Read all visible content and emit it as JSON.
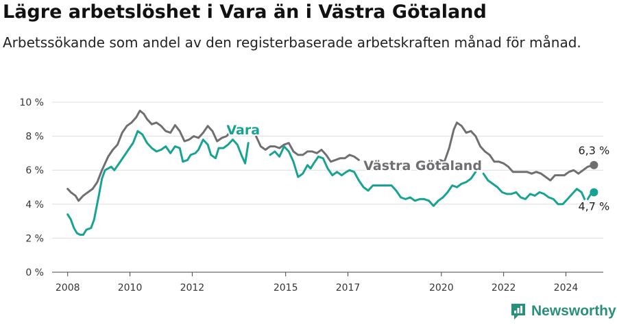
{
  "title": "Lägre arbetslöshet i Vara än i Västra Götaland",
  "subtitle": "Arbetssökande som andel av den registerbaserade arbetskraften månad för månad.",
  "brand": {
    "name": "Newsworthy",
    "color": "#2a8f7a"
  },
  "chart_data": {
    "type": "line",
    "title": "Lägre arbetslöshet i Vara än i Västra Götaland",
    "subtitle": "Arbetssökande som andel av den registerbaserade arbetskraften månad för månad.",
    "xlabel": "",
    "ylabel": "",
    "xlim": [
      2007.5,
      2025.2
    ],
    "ylim": [
      0,
      10
    ],
    "x_ticks": [
      2008,
      2010,
      2012,
      2015,
      2017,
      2020,
      2022,
      2024
    ],
    "x_tick_labels": [
      "2008",
      "2010",
      "2012",
      "2015",
      "2017",
      "2020",
      "2022",
      "2024"
    ],
    "y_ticks": [
      0,
      2,
      4,
      6,
      8,
      10
    ],
    "y_tick_labels": [
      "0 %",
      "2 %",
      "4 %",
      "6 %",
      "8 %",
      "10 %"
    ],
    "grid": true,
    "legend": "inline labels",
    "series": [
      {
        "name": "Västra Götaland",
        "color": "#6e6e73",
        "end_label": "6,3 %",
        "points": [
          [
            2008.0,
            4.9
          ],
          [
            2008.1,
            4.7
          ],
          [
            2008.25,
            4.5
          ],
          [
            2008.35,
            4.2
          ],
          [
            2008.5,
            4.5
          ],
          [
            2008.65,
            4.7
          ],
          [
            2008.8,
            4.9
          ],
          [
            2008.95,
            5.3
          ],
          [
            2009.1,
            6.0
          ],
          [
            2009.3,
            6.8
          ],
          [
            2009.45,
            7.2
          ],
          [
            2009.6,
            7.5
          ],
          [
            2009.75,
            8.2
          ],
          [
            2009.9,
            8.6
          ],
          [
            2010.05,
            8.8
          ],
          [
            2010.2,
            9.1
          ],
          [
            2010.32,
            9.5
          ],
          [
            2010.45,
            9.3
          ],
          [
            2010.55,
            9.0
          ],
          [
            2010.7,
            8.7
          ],
          [
            2010.85,
            8.8
          ],
          [
            2011.0,
            8.6
          ],
          [
            2011.15,
            8.3
          ],
          [
            2011.3,
            8.2
          ],
          [
            2011.45,
            8.65
          ],
          [
            2011.6,
            8.3
          ],
          [
            2011.75,
            7.7
          ],
          [
            2011.9,
            7.8
          ],
          [
            2012.05,
            8.0
          ],
          [
            2012.2,
            7.9
          ],
          [
            2012.35,
            8.2
          ],
          [
            2012.5,
            8.6
          ],
          [
            2012.65,
            8.3
          ],
          [
            2012.8,
            7.7
          ],
          [
            2012.95,
            7.9
          ],
          [
            2013.1,
            8.0
          ],
          [
            2013.25,
            8.3
          ],
          [
            2013.4,
            8.5
          ],
          null,
          [
            2014.05,
            8.0
          ],
          [
            2014.2,
            7.4
          ],
          [
            2014.35,
            7.2
          ],
          [
            2014.5,
            7.4
          ],
          [
            2014.65,
            7.4
          ],
          [
            2014.8,
            7.3
          ],
          [
            2014.95,
            7.5
          ],
          [
            2015.1,
            7.6
          ],
          [
            2015.25,
            7.1
          ],
          [
            2015.4,
            6.9
          ],
          [
            2015.55,
            6.9
          ],
          [
            2015.7,
            7.1
          ],
          [
            2015.85,
            7.1
          ],
          [
            2016.0,
            7.0
          ],
          [
            2016.15,
            7.2
          ],
          [
            2016.3,
            6.9
          ],
          [
            2016.45,
            6.5
          ],
          [
            2016.6,
            6.6
          ],
          [
            2016.75,
            6.7
          ],
          [
            2016.9,
            6.7
          ],
          [
            2017.05,
            6.9
          ],
          [
            2017.2,
            6.8
          ],
          [
            2017.35,
            6.6
          ],
          null,
          [
            2019.85,
            6.5
          ],
          [
            2019.95,
            6.6
          ],
          [
            2020.1,
            6.5
          ],
          [
            2020.25,
            7.3
          ],
          [
            2020.4,
            8.4
          ],
          [
            2020.5,
            8.8
          ],
          [
            2020.65,
            8.6
          ],
          [
            2020.8,
            8.2
          ],
          [
            2020.95,
            8.3
          ],
          [
            2021.1,
            8.0
          ],
          [
            2021.25,
            7.4
          ],
          [
            2021.4,
            7.1
          ],
          [
            2021.55,
            6.9
          ],
          [
            2021.7,
            6.5
          ],
          [
            2021.85,
            6.5
          ],
          [
            2022.0,
            6.4
          ],
          [
            2022.15,
            6.2
          ],
          [
            2022.3,
            5.9
          ],
          [
            2022.45,
            5.9
          ],
          [
            2022.6,
            5.9
          ],
          [
            2022.75,
            5.9
          ],
          [
            2022.9,
            5.8
          ],
          [
            2023.05,
            5.9
          ],
          [
            2023.2,
            5.8
          ],
          [
            2023.35,
            5.6
          ],
          [
            2023.5,
            5.4
          ],
          [
            2023.65,
            5.7
          ],
          [
            2023.8,
            5.7
          ],
          [
            2023.95,
            5.7
          ],
          [
            2024.1,
            5.9
          ],
          [
            2024.25,
            6.0
          ],
          [
            2024.4,
            5.8
          ],
          [
            2024.55,
            6.0
          ],
          [
            2024.7,
            6.2
          ],
          [
            2024.9,
            6.3
          ]
        ]
      },
      {
        "name": "Vara",
        "color": "#17a392",
        "end_label": "4,7 %",
        "points": [
          [
            2008.0,
            3.4
          ],
          [
            2008.1,
            3.1
          ],
          [
            2008.2,
            2.6
          ],
          [
            2008.3,
            2.3
          ],
          [
            2008.4,
            2.2
          ],
          [
            2008.5,
            2.2
          ],
          [
            2008.6,
            2.5
          ],
          [
            2008.75,
            2.6
          ],
          [
            2008.85,
            3.1
          ],
          [
            2009.0,
            4.5
          ],
          [
            2009.1,
            5.5
          ],
          [
            2009.2,
            6.0
          ],
          [
            2009.3,
            6.1
          ],
          [
            2009.4,
            6.2
          ],
          [
            2009.5,
            6.0
          ],
          [
            2009.65,
            6.4
          ],
          [
            2009.8,
            6.8
          ],
          [
            2009.95,
            7.2
          ],
          [
            2010.1,
            7.6
          ],
          [
            2010.25,
            8.3
          ],
          [
            2010.4,
            8.1
          ],
          [
            2010.55,
            7.6
          ],
          [
            2010.7,
            7.3
          ],
          [
            2010.85,
            7.1
          ],
          [
            2011.0,
            7.2
          ],
          [
            2011.15,
            7.4
          ],
          [
            2011.3,
            7.0
          ],
          [
            2011.45,
            7.4
          ],
          [
            2011.6,
            7.3
          ],
          [
            2011.7,
            6.5
          ],
          [
            2011.85,
            6.6
          ],
          [
            2011.95,
            6.9
          ],
          [
            2012.1,
            7.0
          ],
          [
            2012.2,
            7.2
          ],
          [
            2012.35,
            7.8
          ],
          [
            2012.5,
            7.5
          ],
          [
            2012.6,
            6.9
          ],
          [
            2012.75,
            6.7
          ],
          [
            2012.85,
            7.3
          ],
          [
            2013.0,
            7.3
          ],
          [
            2013.15,
            7.5
          ],
          [
            2013.3,
            7.8
          ],
          [
            2013.45,
            7.5
          ],
          [
            2013.6,
            6.8
          ],
          [
            2013.7,
            6.4
          ],
          [
            2013.8,
            7.6
          ],
          null,
          [
            2014.5,
            6.9
          ],
          [
            2014.65,
            7.1
          ],
          [
            2014.8,
            6.8
          ],
          [
            2014.95,
            7.4
          ],
          [
            2015.1,
            7.1
          ],
          [
            2015.25,
            6.5
          ],
          [
            2015.4,
            5.6
          ],
          [
            2015.55,
            5.8
          ],
          [
            2015.7,
            6.3
          ],
          [
            2015.8,
            6.1
          ],
          [
            2015.9,
            6.4
          ],
          [
            2016.05,
            6.8
          ],
          [
            2016.2,
            6.7
          ],
          [
            2016.35,
            6.1
          ],
          [
            2016.5,
            5.7
          ],
          [
            2016.65,
            5.9
          ],
          [
            2016.8,
            5.7
          ],
          [
            2016.95,
            5.9
          ],
          [
            2017.05,
            6.0
          ],
          [
            2017.2,
            5.9
          ],
          [
            2017.35,
            5.4
          ],
          [
            2017.5,
            5.0
          ],
          [
            2017.65,
            4.8
          ],
          [
            2017.8,
            5.1
          ],
          [
            2017.95,
            5.1
          ],
          [
            2018.1,
            5.1
          ],
          [
            2018.25,
            5.1
          ],
          [
            2018.4,
            5.1
          ],
          [
            2018.55,
            4.8
          ],
          [
            2018.7,
            4.4
          ],
          [
            2018.85,
            4.3
          ],
          [
            2019.0,
            4.4
          ],
          [
            2019.15,
            4.2
          ],
          [
            2019.3,
            4.3
          ],
          [
            2019.45,
            4.3
          ],
          [
            2019.6,
            4.2
          ],
          [
            2019.75,
            3.9
          ],
          [
            2019.9,
            4.2
          ],
          [
            2020.05,
            4.4
          ],
          [
            2020.2,
            4.7
          ],
          [
            2020.35,
            5.1
          ],
          [
            2020.5,
            5.0
          ],
          [
            2020.65,
            5.2
          ],
          [
            2020.8,
            5.3
          ],
          [
            2020.95,
            5.5
          ],
          [
            2021.1,
            5.9
          ],
          null,
          [
            2021.35,
            5.8
          ],
          [
            2021.5,
            5.4
          ],
          [
            2021.65,
            5.2
          ],
          [
            2021.8,
            5.0
          ],
          [
            2021.95,
            4.7
          ],
          [
            2022.1,
            4.6
          ],
          [
            2022.25,
            4.6
          ],
          [
            2022.4,
            4.7
          ],
          [
            2022.55,
            4.4
          ],
          [
            2022.7,
            4.3
          ],
          [
            2022.85,
            4.6
          ],
          [
            2023.0,
            4.5
          ],
          [
            2023.15,
            4.7
          ],
          [
            2023.3,
            4.6
          ],
          [
            2023.45,
            4.4
          ],
          [
            2023.6,
            4.3
          ],
          [
            2023.75,
            4.0
          ],
          [
            2023.9,
            4.0
          ],
          [
            2024.05,
            4.3
          ],
          [
            2024.2,
            4.6
          ],
          [
            2024.35,
            4.9
          ],
          [
            2024.5,
            4.7
          ],
          [
            2024.6,
            4.3
          ],
          null,
          [
            2024.7,
            4.3
          ],
          [
            2024.8,
            4.6
          ],
          [
            2024.9,
            4.7
          ]
        ]
      }
    ],
    "annotations": [
      {
        "text": "Vara",
        "x": 2013.1,
        "y": 8.1,
        "color": "#17a392"
      },
      {
        "text": "Västra Götaland",
        "x": 2017.5,
        "y": 6.0,
        "color": "#6e6e73"
      },
      {
        "text": "6,3 %",
        "x": 2024.9,
        "y": 6.3,
        "color": "#222222"
      },
      {
        "text": "4,7 %",
        "x": 2024.9,
        "y": 4.7,
        "color": "#222222"
      }
    ]
  }
}
